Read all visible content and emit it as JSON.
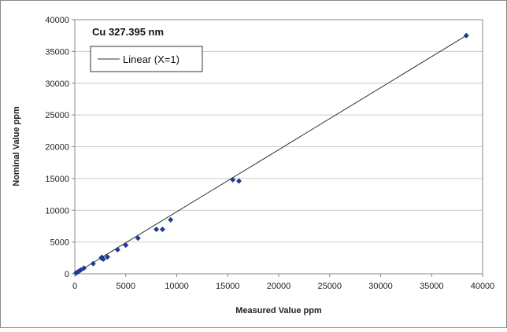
{
  "chart_data": {
    "type": "scatter",
    "title": "Cu 327.395 nm",
    "xlabel": "Measured Value ppm",
    "ylabel": "Nominal Value ppm",
    "xlim": [
      0,
      40000
    ],
    "ylim": [
      0,
      40000
    ],
    "x_ticks": [
      "0",
      "5000",
      "10000",
      "15000",
      "20000",
      "25000",
      "30000",
      "35000",
      "40000"
    ],
    "y_ticks": [
      "0",
      "5000",
      "10000",
      "15000",
      "20000",
      "25000",
      "30000",
      "35000",
      "40000"
    ],
    "grid": true,
    "legend": {
      "position": "top-left",
      "entries": [
        "Linear (X=1)"
      ]
    },
    "points": {
      "x": [
        100,
        250,
        400,
        600,
        900,
        1800,
        2600,
        2650,
        2800,
        3200,
        4200,
        5000,
        6200,
        8000,
        8600,
        9400,
        15500,
        16100,
        38400
      ],
      "y": [
        100,
        250,
        400,
        600,
        900,
        1600,
        2500,
        2600,
        2300,
        2650,
        3800,
        4500,
        5600,
        7000,
        7000,
        8500,
        14800,
        14600,
        37500
      ]
    },
    "trendline": {
      "name": "Linear (X=1)",
      "x": [
        0,
        38400
      ],
      "y": [
        0,
        37500
      ]
    },
    "colors": {
      "points": "#1f3a93",
      "line": "#333333",
      "grid": "#cccccc",
      "frame": "#888888"
    }
  }
}
